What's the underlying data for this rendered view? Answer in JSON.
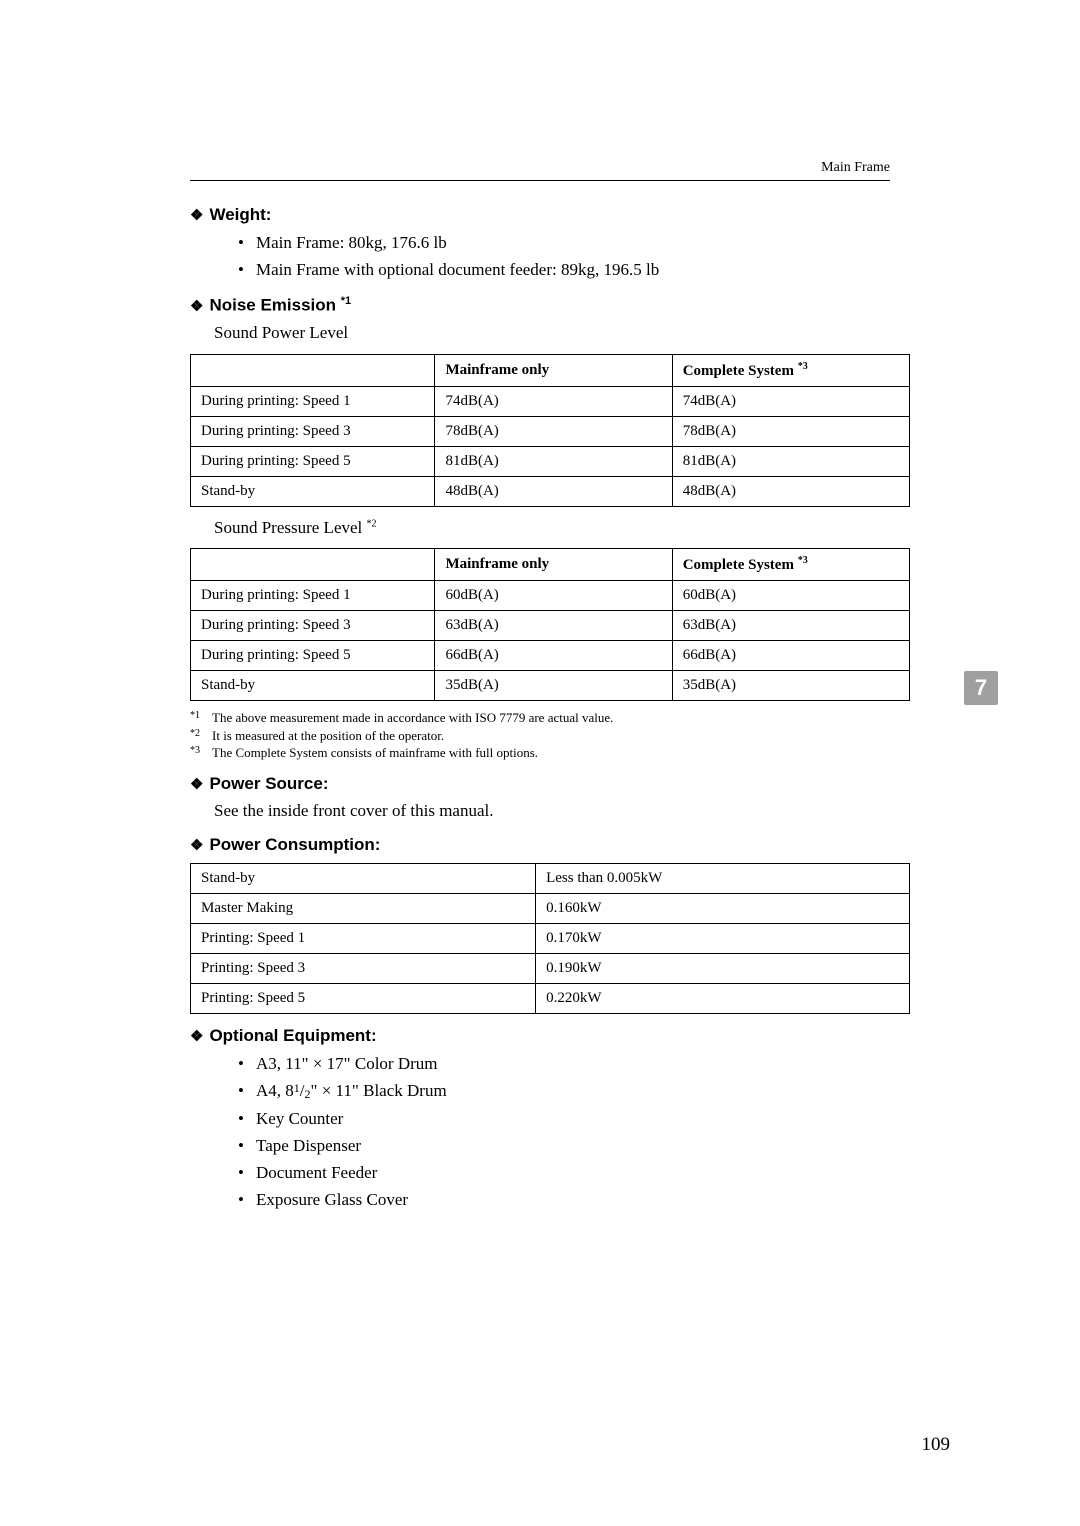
{
  "header": {
    "right_text": "Main Frame"
  },
  "sections": {
    "weight": {
      "heading": "Weight:",
      "items": [
        "Main Frame: 80kg, 176.6 lb",
        "Main Frame with optional document feeder: 89kg, 196.5 lb"
      ]
    },
    "noise": {
      "heading": "Noise Emission ",
      "heading_sup": "*1",
      "sub1": "Sound Power Level",
      "sub2_pre": "Sound Pressure Level ",
      "sub2_sup": "*2",
      "table1": {
        "headers": [
          "",
          "Mainframe only",
          "Complete System "
        ],
        "header_sup": "*3",
        "rows": [
          [
            "During printing: Speed 1",
            "74dB(A)",
            "74dB(A)"
          ],
          [
            "During printing: Speed 3",
            "78dB(A)",
            "78dB(A)"
          ],
          [
            "During printing: Speed 5",
            "81dB(A)",
            "81dB(A)"
          ],
          [
            "Stand-by",
            "48dB(A)",
            "48dB(A)"
          ]
        ],
        "col_widths": [
          "34%",
          "33%",
          "33%"
        ]
      },
      "table2": {
        "headers": [
          "",
          "Mainframe only",
          "Complete System "
        ],
        "header_sup": "*3",
        "rows": [
          [
            "During printing: Speed 1",
            "60dB(A)",
            "60dB(A)"
          ],
          [
            "During printing: Speed 3",
            "63dB(A)",
            "63dB(A)"
          ],
          [
            "During printing: Speed 5",
            "66dB(A)",
            "66dB(A)"
          ],
          [
            "Stand-by",
            "35dB(A)",
            "35dB(A)"
          ]
        ],
        "col_widths": [
          "34%",
          "33%",
          "33%"
        ]
      },
      "footnotes": [
        {
          "mark": "*1",
          "text": "The above measurement made in accordance with ISO 7779 are actual value."
        },
        {
          "mark": "*2",
          "text": "It is measured at the position of the operator."
        },
        {
          "mark": "*3",
          "text": "The Complete System consists of mainframe with full options."
        }
      ]
    },
    "power_source": {
      "heading": "Power Source:",
      "text": "See the inside front cover of this manual."
    },
    "power_consumption": {
      "heading": "Power Consumption:",
      "table": {
        "rows": [
          [
            "Stand-by",
            "Less than 0.005kW"
          ],
          [
            "Master Making",
            "0.160kW"
          ],
          [
            "Printing: Speed 1",
            "0.170kW"
          ],
          [
            "Printing: Speed 3",
            "0.190kW"
          ],
          [
            "Printing: Speed 5",
            "0.220kW"
          ]
        ],
        "col_widths": [
          "48%",
          "52%"
        ]
      }
    },
    "optional": {
      "heading": "Optional Equipment:",
      "items_html": [
        "A3, 11\" × 17\" Color Drum",
        "A4, 8<span class=\"fraction-num\">1</span>/<span class=\"fraction-den\">2</span>\" × 11\" Black Drum",
        "Key Counter",
        "Tape Dispenser",
        "Document Feeder",
        "Exposure Glass Cover"
      ]
    }
  },
  "chapter_tab": "7",
  "page_number": "109",
  "colors": {
    "text": "#000000",
    "background": "#ffffff",
    "tab_bg": "#a0a0a0",
    "tab_fg": "#ffffff",
    "border": "#000000"
  }
}
